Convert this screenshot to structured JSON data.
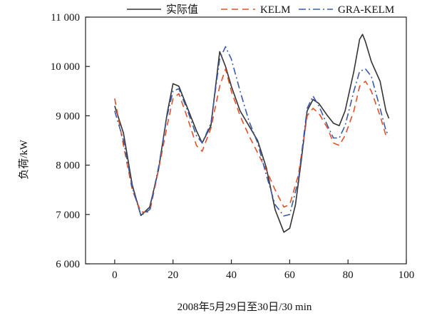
{
  "chart_data": {
    "type": "line",
    "title": "",
    "xlabel": "2008年5月29日至30日/30 min",
    "ylabel": "负荷/kW",
    "xlim": [
      -10,
      100
    ],
    "ylim": [
      6000,
      11000
    ],
    "xticks": [
      0,
      20,
      40,
      60,
      80,
      100
    ],
    "yticks": [
      6000,
      7000,
      8000,
      9000,
      10000,
      11000
    ],
    "xtick_labels": [
      "0",
      "20",
      "40",
      "60",
      "80",
      "100"
    ],
    "ytick_labels": [
      "6 000",
      "7 000",
      "8 000",
      "9 000",
      "10 000",
      "11 000"
    ],
    "grid": false,
    "legend_position": "top",
    "series": [
      {
        "name": "实际值",
        "color": "#333333",
        "style": "solid",
        "points": [
          [
            0,
            9200
          ],
          [
            3,
            8650
          ],
          [
            6,
            7600
          ],
          [
            9,
            6980
          ],
          [
            12,
            7150
          ],
          [
            15,
            7900
          ],
          [
            18,
            9050
          ],
          [
            20,
            9650
          ],
          [
            22,
            9600
          ],
          [
            25,
            9150
          ],
          [
            28,
            8700
          ],
          [
            30,
            8450
          ],
          [
            33,
            8800
          ],
          [
            36,
            10300
          ],
          [
            38,
            10000
          ],
          [
            40,
            9600
          ],
          [
            43,
            9100
          ],
          [
            46,
            8800
          ],
          [
            49,
            8500
          ],
          [
            52,
            7950
          ],
          [
            55,
            7100
          ],
          [
            58,
            6640
          ],
          [
            60,
            6720
          ],
          [
            62,
            7200
          ],
          [
            64,
            8100
          ],
          [
            66,
            9100
          ],
          [
            68,
            9330
          ],
          [
            70,
            9250
          ],
          [
            73,
            9000
          ],
          [
            75,
            8850
          ],
          [
            77,
            8800
          ],
          [
            79,
            9100
          ],
          [
            82,
            9900
          ],
          [
            84,
            10550
          ],
          [
            85,
            10650
          ],
          [
            86,
            10500
          ],
          [
            88,
            10100
          ],
          [
            91,
            9700
          ],
          [
            93,
            9100
          ],
          [
            94,
            8950
          ]
        ]
      },
      {
        "name": "KELM",
        "color": "#e0502a",
        "style": "dashed",
        "points": [
          [
            0,
            9350
          ],
          [
            3,
            8400
          ],
          [
            6,
            7500
          ],
          [
            9,
            7050
          ],
          [
            12,
            7050
          ],
          [
            15,
            7900
          ],
          [
            18,
            8800
          ],
          [
            20,
            9350
          ],
          [
            22,
            9450
          ],
          [
            25,
            8950
          ],
          [
            28,
            8400
          ],
          [
            30,
            8280
          ],
          [
            33,
            8750
          ],
          [
            36,
            9600
          ],
          [
            38,
            9950
          ],
          [
            40,
            9500
          ],
          [
            43,
            9000
          ],
          [
            46,
            8600
          ],
          [
            49,
            8250
          ],
          [
            52,
            7900
          ],
          [
            55,
            7500
          ],
          [
            58,
            7150
          ],
          [
            60,
            7200
          ],
          [
            63,
            7800
          ],
          [
            66,
            9000
          ],
          [
            68,
            9150
          ],
          [
            70,
            9050
          ],
          [
            73,
            8750
          ],
          [
            75,
            8450
          ],
          [
            77,
            8400
          ],
          [
            79,
            8600
          ],
          [
            82,
            9100
          ],
          [
            84,
            9600
          ],
          [
            86,
            9700
          ],
          [
            88,
            9500
          ],
          [
            91,
            9000
          ],
          [
            93,
            8600
          ],
          [
            94,
            8550
          ]
        ]
      },
      {
        "name": "GRA-KELM",
        "color": "#3c5aa6",
        "style": "dashdot",
        "points": [
          [
            0,
            9100
          ],
          [
            3,
            8500
          ],
          [
            6,
            7550
          ],
          [
            9,
            6980
          ],
          [
            12,
            7100
          ],
          [
            15,
            7950
          ],
          [
            18,
            9000
          ],
          [
            20,
            9500
          ],
          [
            22,
            9550
          ],
          [
            25,
            9100
          ],
          [
            28,
            8600
          ],
          [
            30,
            8450
          ],
          [
            33,
            8850
          ],
          [
            36,
            10150
          ],
          [
            38,
            10400
          ],
          [
            40,
            10150
          ],
          [
            43,
            9500
          ],
          [
            46,
            8900
          ],
          [
            49,
            8450
          ],
          [
            52,
            7800
          ],
          [
            55,
            7200
          ],
          [
            58,
            6970
          ],
          [
            60,
            7000
          ],
          [
            63,
            7700
          ],
          [
            66,
            9150
          ],
          [
            68,
            9400
          ],
          [
            70,
            9200
          ],
          [
            73,
            8800
          ],
          [
            75,
            8550
          ],
          [
            77,
            8550
          ],
          [
            79,
            8800
          ],
          [
            82,
            9500
          ],
          [
            84,
            9900
          ],
          [
            86,
            9950
          ],
          [
            88,
            9800
          ],
          [
            91,
            9150
          ],
          [
            93,
            8700
          ],
          [
            94,
            8600
          ]
        ]
      }
    ]
  }
}
